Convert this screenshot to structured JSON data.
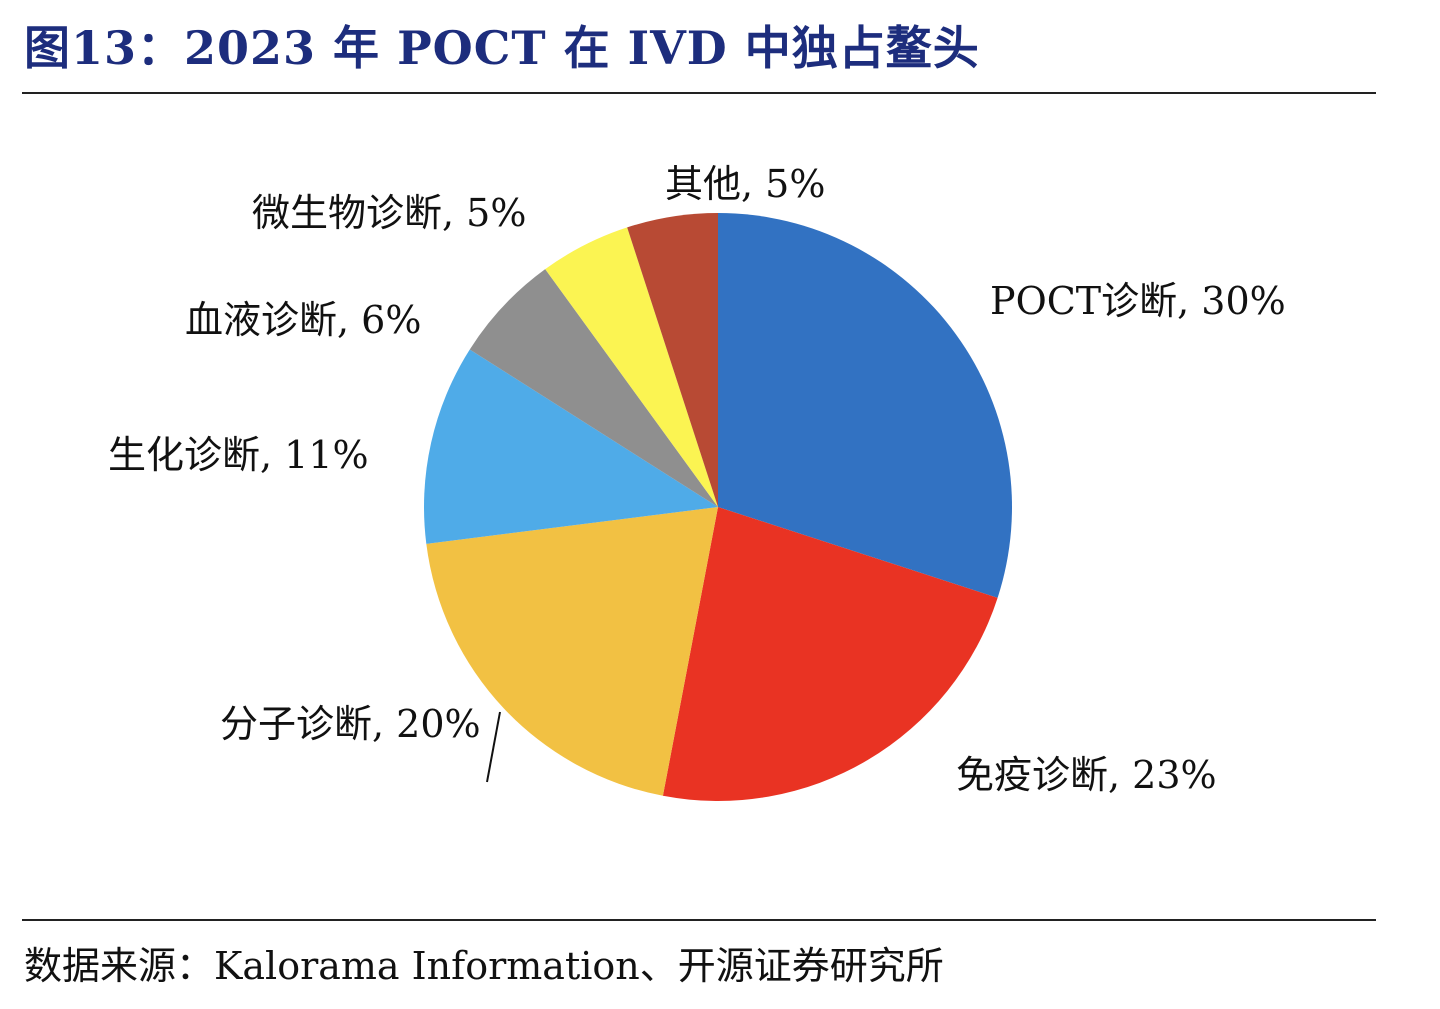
{
  "figure": {
    "title": "图13：2023 年 POCT 在 IVD 中独占鳌头",
    "source": "数据来源：Kalorama Information、开源证券研究所"
  },
  "chart_data": {
    "type": "pie",
    "title": "",
    "start_angle_deg": 0,
    "direction": "clockwise",
    "slices": [
      {
        "label": "POCT诊断, 30%",
        "category": "POCT诊断",
        "value": 30,
        "color": "#3272c2"
      },
      {
        "label": "免疫诊断, 23%",
        "category": "免疫诊断",
        "value": 23,
        "color": "#e93323"
      },
      {
        "label": "分子诊断, 20%",
        "category": "分子诊断",
        "value": 20,
        "color": "#f2c143"
      },
      {
        "label": "生化诊断, 11%",
        "category": "生化诊断",
        "value": 11,
        "color": "#4fabe8"
      },
      {
        "label": "血液诊断, 6%",
        "category": "血液诊断",
        "value": 6,
        "color": "#8f8f8f"
      },
      {
        "label": "微生物诊断, 5%",
        "category": "微生物诊断",
        "value": 5,
        "color": "#fbf452"
      },
      {
        "label": "其他, 5%",
        "category": "其他",
        "value": 5,
        "color": "#b84a34"
      }
    ],
    "legend": "none"
  }
}
